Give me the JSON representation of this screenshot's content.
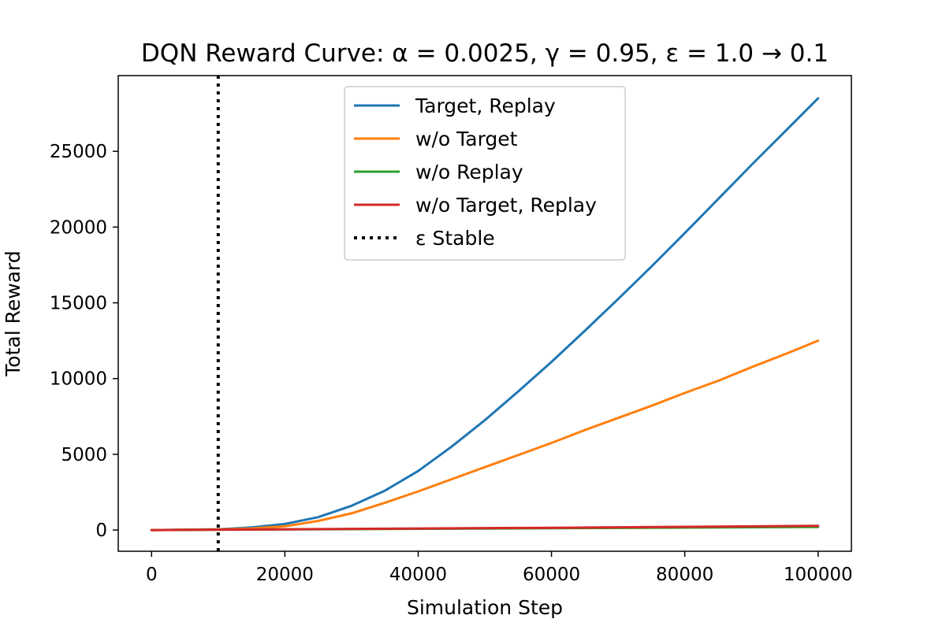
{
  "chart_data": {
    "type": "line",
    "title": "DQN Reward Curve: α = 0.0025, γ = 0.95, ε = 1.0 → 0.1",
    "xlabel": "Simulation Step",
    "ylabel": "Total Reward",
    "xlim": [
      -5000,
      105000
    ],
    "ylim": [
      -1400,
      30000
    ],
    "xticks": [
      0,
      20000,
      40000,
      60000,
      80000,
      100000
    ],
    "xtick_labels": [
      "0",
      "20000",
      "40000",
      "60000",
      "80000",
      "100000"
    ],
    "yticks": [
      0,
      5000,
      10000,
      15000,
      20000,
      25000
    ],
    "ytick_labels": [
      "0",
      "5000",
      "10000",
      "15000",
      "20000",
      "25000"
    ],
    "grid": false,
    "legend_position": "top-center",
    "series": [
      {
        "name": "Target, Replay",
        "color": "#1f77b4",
        "style": "solid",
        "x": [
          0,
          10000,
          15000,
          20000,
          25000,
          30000,
          35000,
          40000,
          45000,
          50000,
          55000,
          60000,
          65000,
          70000,
          75000,
          80000,
          85000,
          90000,
          95000,
          100000
        ],
        "y": [
          0,
          50,
          170,
          400,
          850,
          1600,
          2600,
          3900,
          5500,
          7250,
          9150,
          11100,
          13150,
          15250,
          17400,
          19600,
          21850,
          24100,
          26300,
          28500
        ]
      },
      {
        "name": "w/o Target",
        "color": "#ff7f0e",
        "style": "solid",
        "x": [
          0,
          10000,
          15000,
          20000,
          25000,
          30000,
          35000,
          40000,
          45000,
          50000,
          55000,
          60000,
          65000,
          70000,
          75000,
          80000,
          85000,
          90000,
          95000,
          100000
        ],
        "y": [
          0,
          40,
          100,
          250,
          600,
          1100,
          1800,
          2550,
          3350,
          4150,
          4950,
          5750,
          6600,
          7400,
          8200,
          9050,
          9850,
          10750,
          11600,
          12500
        ]
      },
      {
        "name": "w/o Replay",
        "color": "#2ca02c",
        "style": "solid",
        "x": [
          0,
          20000,
          40000,
          60000,
          80000,
          100000
        ],
        "y": [
          0,
          40,
          80,
          120,
          160,
          200
        ]
      },
      {
        "name": "w/o Target, Replay",
        "color": "#d62728",
        "style": "solid",
        "x": [
          0,
          20000,
          40000,
          60000,
          80000,
          100000
        ],
        "y": [
          0,
          50,
          100,
          150,
          210,
          280
        ]
      },
      {
        "name": "ε Stable",
        "color": "#000000",
        "style": "dotted",
        "vline_x": 10000
      }
    ]
  }
}
